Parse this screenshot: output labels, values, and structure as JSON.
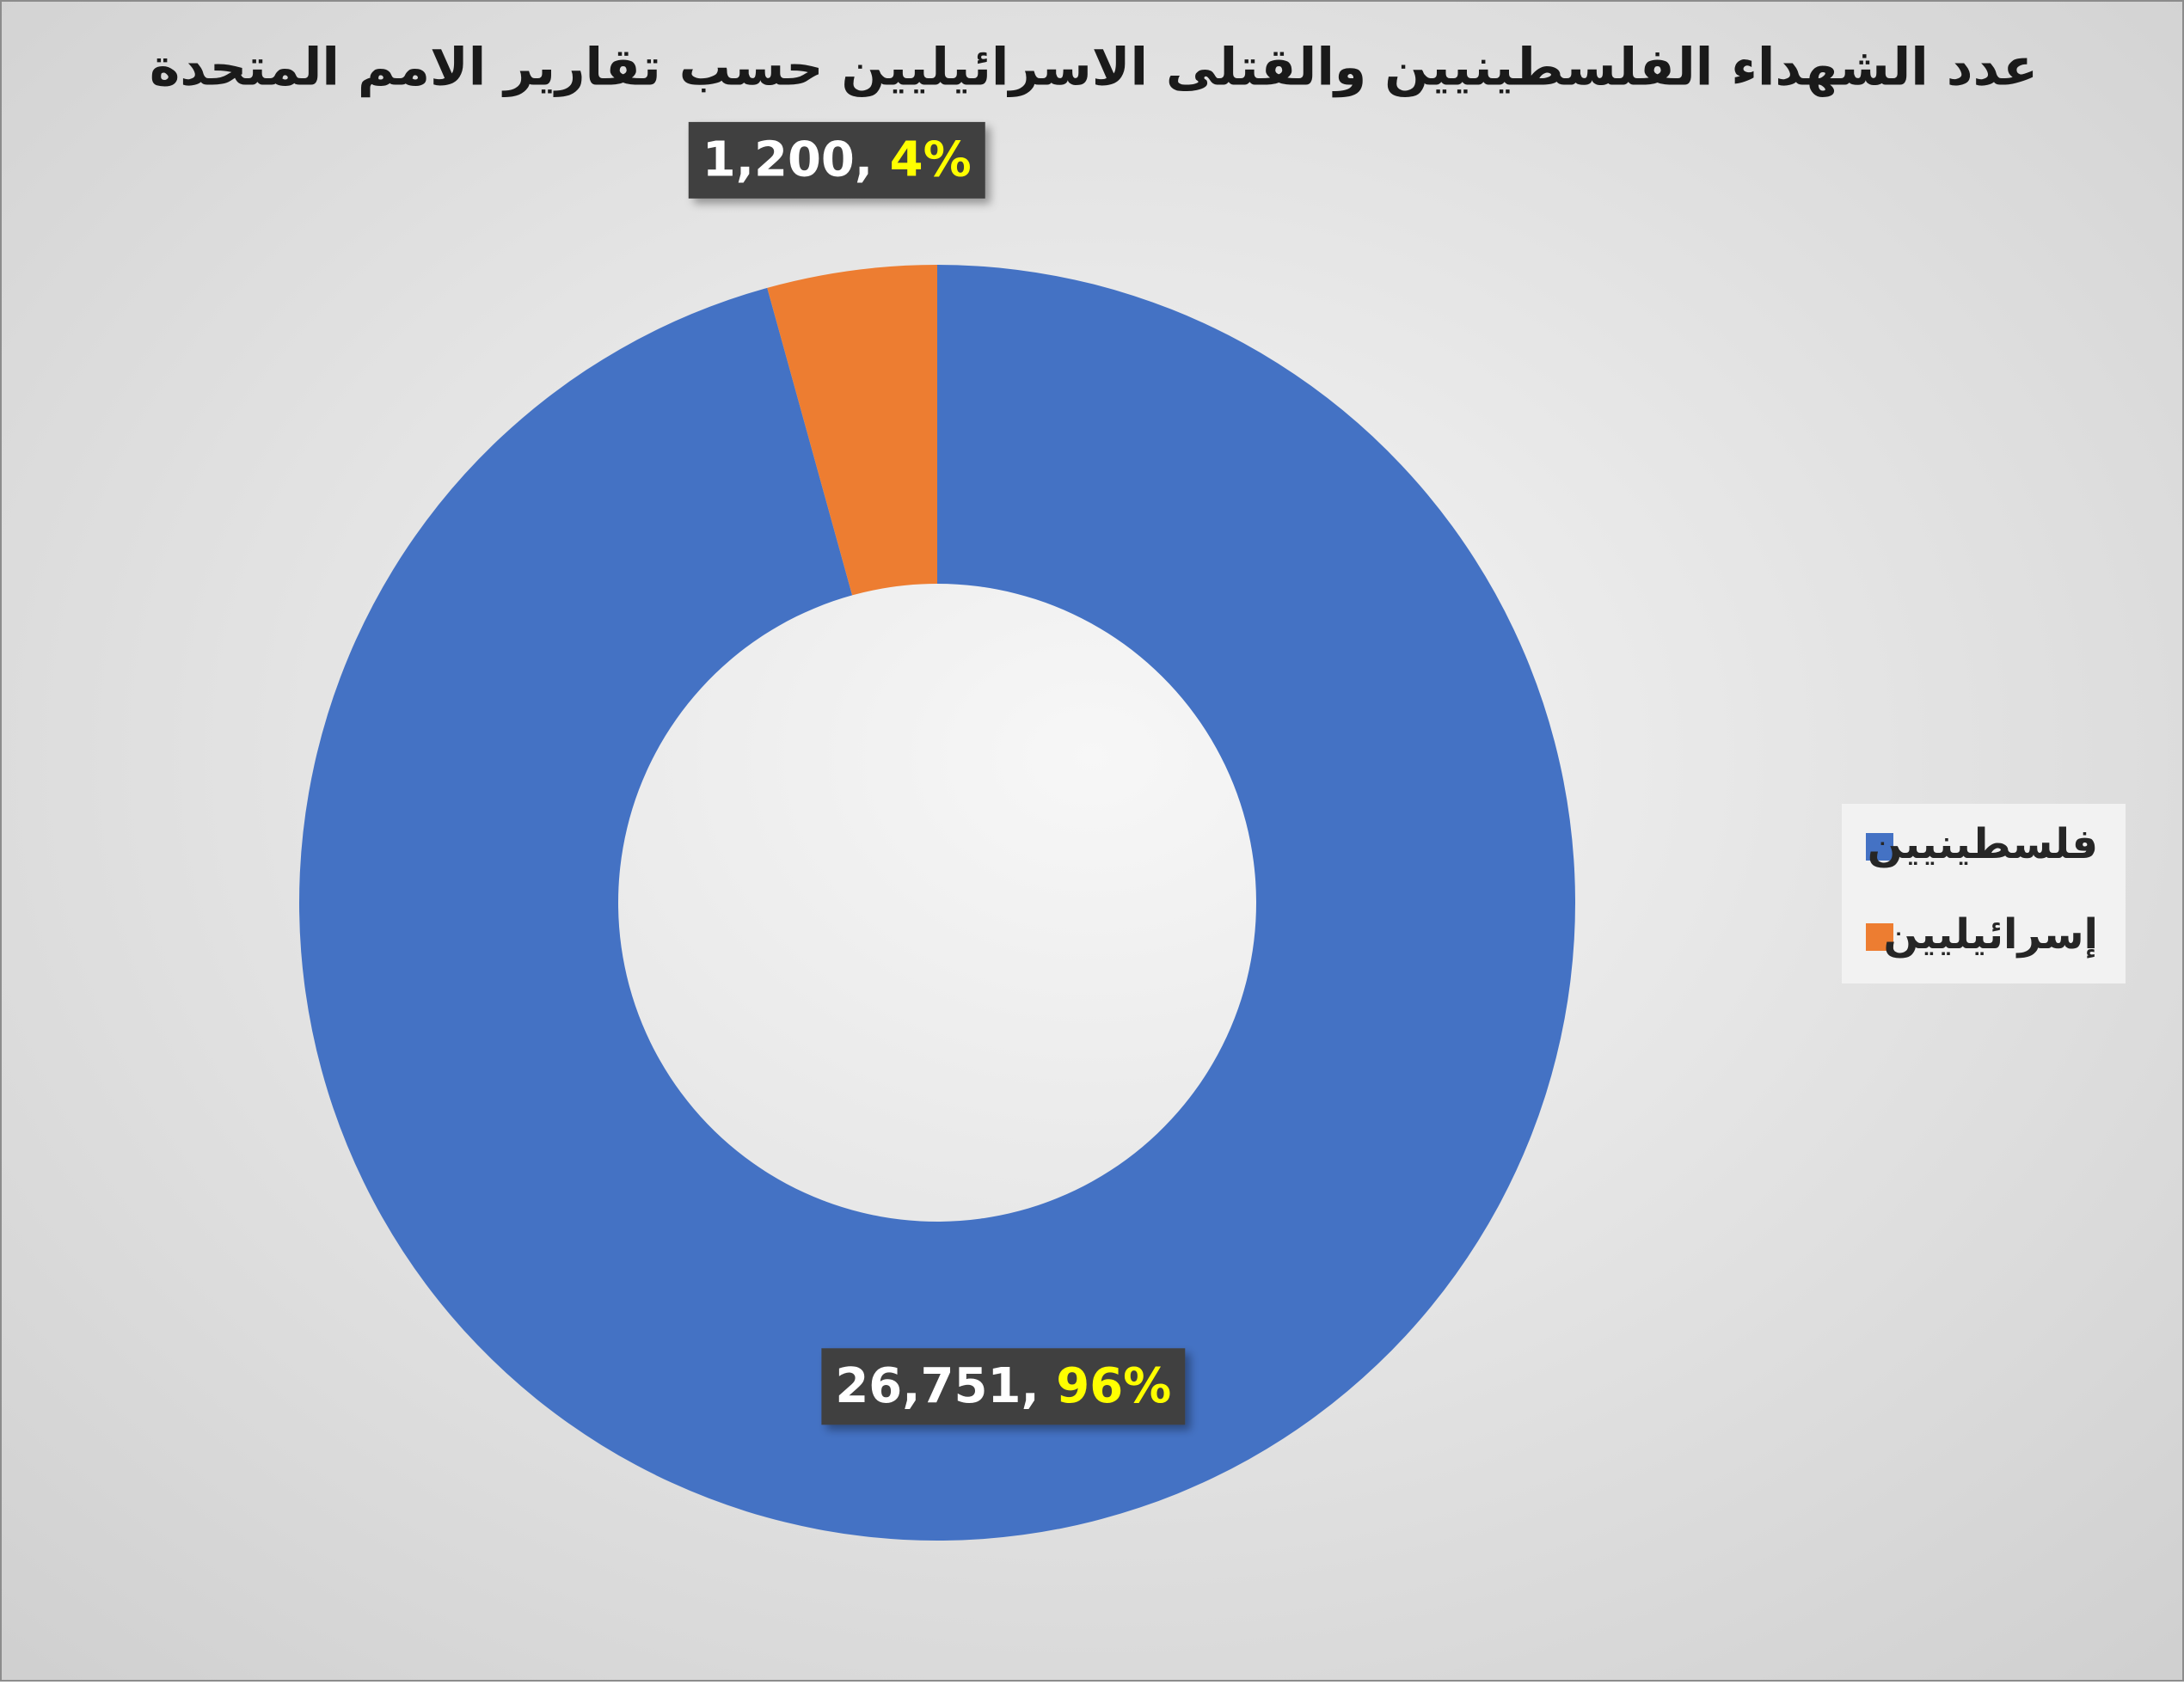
{
  "chart_data": {
    "type": "donut",
    "title": "عدد الشهداء الفلسطينيين والقتلى الاسرائيليين حسب تقارير الامم المتحدة",
    "categories": [
      "فلسطينيين",
      "إسرائيليين"
    ],
    "values": [
      26751,
      1200
    ],
    "value_labels": [
      "26,751",
      "1,200"
    ],
    "percents": [
      96,
      4
    ],
    "percent_labels": [
      "96%",
      "4%"
    ],
    "label_separator": ", ",
    "colors": [
      "#4472c4",
      "#ed7d31"
    ],
    "legend": "right"
  }
}
